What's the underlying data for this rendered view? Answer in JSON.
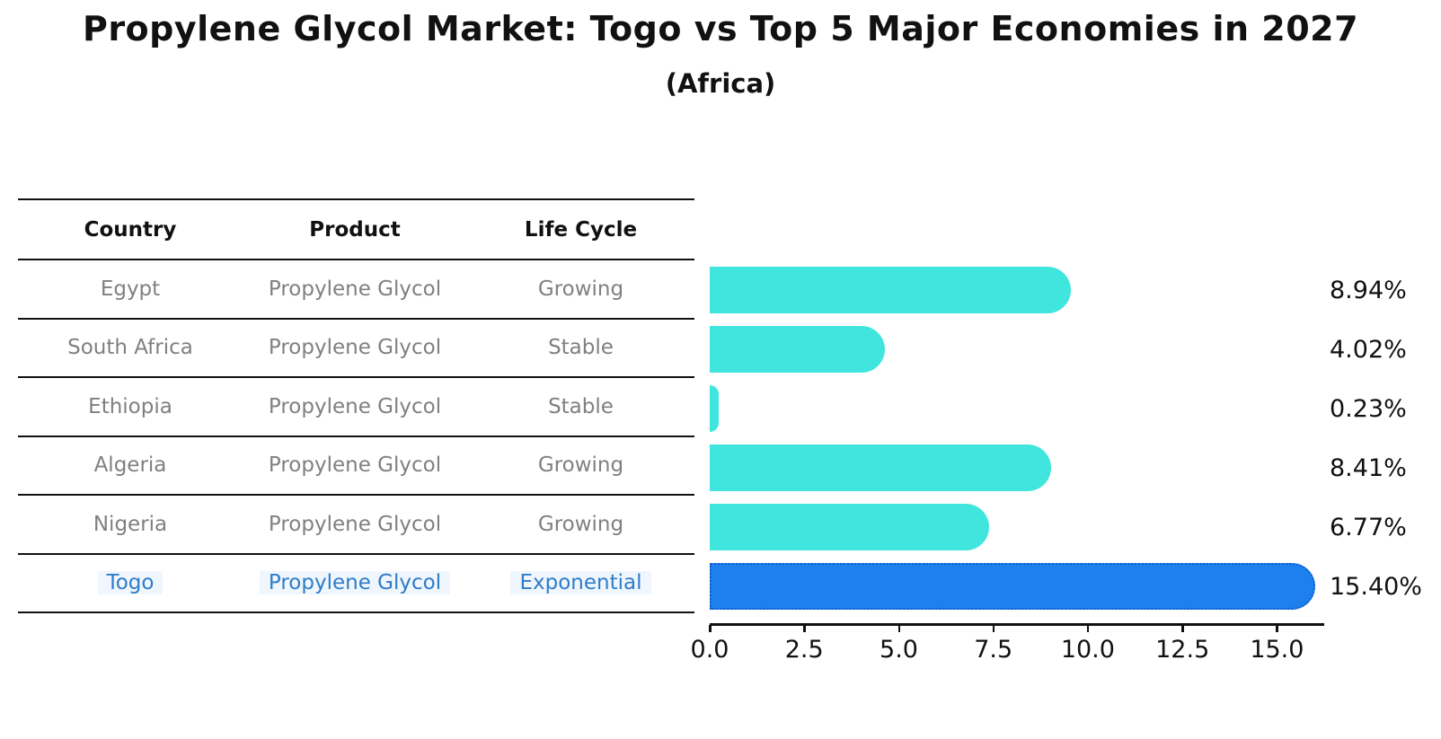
{
  "title": "Propylene Glycol Market: Togo vs Top 5 Major Economies in 2027",
  "subtitle": "(Africa)",
  "table": {
    "headers": [
      "Country",
      "Product",
      "Life Cycle"
    ],
    "rows": [
      {
        "country": "Egypt",
        "product": "Propylene Glycol",
        "life_cycle": "Growing"
      },
      {
        "country": "South Africa",
        "product": "Propylene Glycol",
        "life_cycle": "Stable"
      },
      {
        "country": "Ethiopia",
        "product": "Propylene Glycol",
        "life_cycle": "Stable"
      },
      {
        "country": "Algeria",
        "product": "Propylene Glycol",
        "life_cycle": "Growing"
      },
      {
        "country": "Nigeria",
        "product": "Propylene Glycol",
        "life_cycle": "Growing"
      },
      {
        "country": "Togo",
        "product": "Propylene Glycol",
        "life_cycle": "Exponential"
      }
    ]
  },
  "chart_data": {
    "type": "bar",
    "orientation": "horizontal",
    "title": "Propylene Glycol Market: Togo vs Top 5 Major Economies in 2027",
    "subtitle": "(Africa)",
    "categories": [
      "Egypt",
      "South Africa",
      "Ethiopia",
      "Algeria",
      "Nigeria",
      "Togo"
    ],
    "values": [
      8.94,
      4.02,
      0.23,
      8.41,
      6.77,
      15.4
    ],
    "value_labels": [
      "8.94%",
      "4.02%",
      "0.23%",
      "8.41%",
      "6.77%",
      "15.40%"
    ],
    "x_ticks": [
      0.0,
      2.5,
      5.0,
      7.5,
      10.0,
      12.5,
      15.0
    ],
    "x_tick_labels": [
      "0.0",
      "2.5",
      "5.0",
      "7.5",
      "10.0",
      "12.5",
      "15.0"
    ],
    "xlim": [
      0,
      16.25
    ],
    "grid": false,
    "legend": "none",
    "highlight_index": 5,
    "colors": {
      "bar": "#40E6DD",
      "highlight_bar": "#1E80EC",
      "highlight_border": "#0D5FD0",
      "highlight_text": "#2E7DC8",
      "row_text": "#808080",
      "header_text": "#111111",
      "axis": "#111111"
    }
  }
}
